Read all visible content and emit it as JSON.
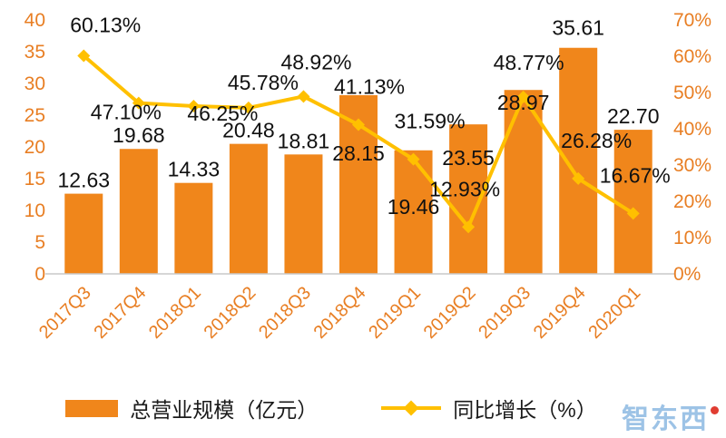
{
  "chart_data": {
    "type": "combo",
    "categories": [
      "2017Q3",
      "2017Q4",
      "2018Q1",
      "2018Q2",
      "2018Q3",
      "2018Q4",
      "2019Q1",
      "2019Q2",
      "2019Q3",
      "2019Q4",
      "2020Q1"
    ],
    "series": [
      {
        "name": "总营业规模（亿元）",
        "type": "bar",
        "axis": "left",
        "values": [
          12.63,
          19.68,
          14.33,
          20.48,
          18.81,
          28.15,
          19.46,
          23.55,
          28.97,
          35.61,
          22.7
        ],
        "labels": [
          "12.63",
          "19.68",
          "14.33",
          "20.48",
          "18.81",
          "28.15",
          "19.46",
          "23.55",
          "28.97",
          "35.61",
          "22.70"
        ]
      },
      {
        "name": "同比增长（%）",
        "type": "line",
        "axis": "right",
        "values": [
          60.13,
          47.1,
          46.25,
          45.78,
          48.92,
          41.13,
          31.59,
          12.93,
          48.77,
          26.28,
          16.67
        ],
        "labels": [
          "60.13%",
          "47.10%",
          "46.25%",
          "45.78%",
          "48.92%",
          "41.13%",
          "31.59%",
          "12.93%",
          "48.77%",
          "26.28%",
          "16.67%"
        ]
      }
    ],
    "left_axis": {
      "min": 0,
      "max": 40,
      "step": 5,
      "ticks": [
        "0",
        "5",
        "10",
        "15",
        "20",
        "25",
        "30",
        "35",
        "40"
      ]
    },
    "right_axis": {
      "min": 0,
      "max": 70,
      "step": 10,
      "ticks": [
        "0%",
        "10%",
        "20%",
        "30%",
        "40%",
        "50%",
        "60%",
        "70%"
      ]
    },
    "grid": false,
    "legend_position": "bottom",
    "layout": {
      "bar_label_dy": [
        -7,
        -7,
        -7,
        -7,
        -7,
        72,
        70,
        45,
        22,
        -14,
        -7
      ],
      "line_label_dy": [
        -26,
        18,
        16,
        -20,
        -30,
        -34,
        -34,
        -34,
        -30,
        -34,
        -34
      ],
      "line_label_dx": [
        24,
        -14,
        32,
        16,
        14,
        12,
        18,
        -4,
        6,
        20,
        2
      ]
    }
  },
  "legend": {
    "bar_label": "总营业规模（亿元）",
    "line_label": "同比增长（%）"
  },
  "watermark": {
    "text": "智东西"
  },
  "colors": {
    "bar": "#F0861B",
    "line": "#FFC000",
    "axis_text": "#E87E23",
    "label_text": "#111111",
    "axis_line": "#C9C9C9",
    "watermark_blue": "#9DC3E6",
    "watermark_red": "#E03C31"
  }
}
